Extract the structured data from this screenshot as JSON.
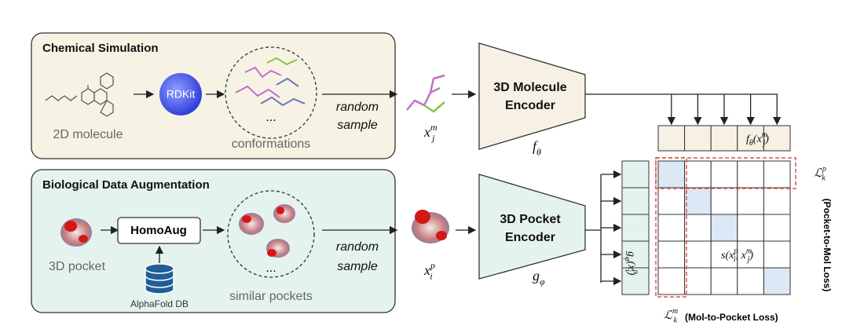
{
  "panels": [
    {
      "title": "Chemical Simulation",
      "input_label": "2D molecule",
      "tool": "RDKit",
      "set_label": "conformations",
      "ellipsis": "...",
      "sampling": [
        "random",
        "sample"
      ]
    },
    {
      "title": "Biological Data Augmentation",
      "input_label": "3D pocket",
      "tool": "HomoAug",
      "database": "AlphaFold DB",
      "set_label": "similar pockets",
      "ellipsis": "...",
      "sampling": [
        "random",
        "sample"
      ]
    }
  ],
  "molecule_branch": {
    "sample": [
      {
        "main": "x",
        "sub": "j",
        "sup": "m"
      }
    ],
    "encoder": [
      "3D Molecule",
      "Encoder"
    ],
    "function": [
      {
        "main": "f",
        "sub": "θ"
      }
    ],
    "embedding": [
      {
        "main": "f",
        "sub": "θ"
      },
      {
        "main": "(x",
        "sub": "j",
        "sup": "m"
      },
      {
        "main": ")"
      }
    ]
  },
  "pocket_branch": {
    "sample": [
      {
        "main": "x",
        "sub": "i",
        "sup": "p"
      }
    ],
    "encoder": [
      "3D Pocket",
      "Encoder"
    ],
    "function": [
      {
        "main": "g",
        "sub": "φ"
      }
    ],
    "embedding": [
      {
        "main": "g",
        "sub": "φ"
      },
      {
        "main": "(x",
        "sub": "i",
        "sup": "p"
      },
      {
        "main": ")"
      }
    ]
  },
  "similarity": {
    "score": [
      {
        "main": "s(x",
        "sub": "i",
        "sup": "p"
      },
      {
        "main": ", x",
        "sub": "j",
        "sup": "m"
      },
      {
        "main": ")"
      }
    ],
    "pocket_loss_symbol": [
      {
        "main": "ℒ",
        "sub": "k",
        "sup": "p"
      }
    ],
    "pocket_loss_name": "(Pocket-to-Mol Loss)",
    "mol_loss_symbol": [
      {
        "main": "ℒ",
        "sub": "k",
        "sup": "m"
      }
    ],
    "mol_loss_name": "(Mol-to-Pocket Loss)"
  }
}
